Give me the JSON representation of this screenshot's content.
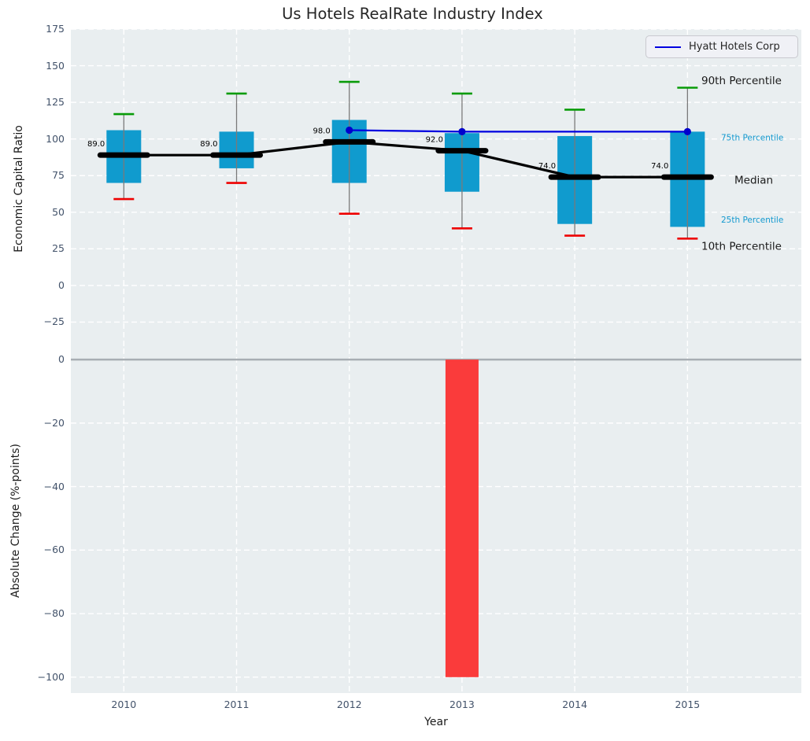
{
  "title": "Us Hotels RealRate Industry Index",
  "legend": {
    "label": "Hyatt Hotels Corp"
  },
  "colors": {
    "axes_background": "#e9eef0",
    "grid": "#ffffff",
    "box_fill": "#109bce",
    "whisker": "#7a7a7a",
    "cap_90th": "#089b08",
    "cap_10th": "#ee0000",
    "median": "#000000",
    "hyatt_line": "#0000e0",
    "hyatt_marker": "#0000cd",
    "bar_negative": "#fa3b3b",
    "zero_line": "#a8aeb3",
    "tick_label": "#42526a",
    "percentile_small_label": "#1399cf",
    "text": "#262626"
  },
  "chart_data": [
    {
      "type": "box",
      "panel": "top",
      "title": "Us Hotels RealRate Industry Index",
      "ylabel": "Economic Capital Ratio",
      "x": [
        2010,
        2011,
        2012,
        2013,
        2014,
        2015
      ],
      "xlim": [
        2009.53,
        2016.01
      ],
      "ylim": [
        -43,
        175
      ],
      "yticks": [
        175,
        150,
        125,
        100,
        75,
        50,
        25,
        0,
        -25
      ],
      "grid": "white dashed, horizontal and vertical",
      "legend_position": "upper right",
      "series": [
        {
          "name": "90th Percentile",
          "values": [
            117,
            131,
            139,
            131,
            120,
            135
          ]
        },
        {
          "name": "75th Percentile",
          "values": [
            106,
            105,
            113,
            104,
            102,
            105
          ]
        },
        {
          "name": "Median",
          "values": [
            89,
            89,
            98,
            92,
            74,
            74
          ]
        },
        {
          "name": "25th Percentile",
          "values": [
            70,
            80,
            70,
            64,
            42,
            40
          ]
        },
        {
          "name": "10th Percentile",
          "values": [
            59,
            70,
            49,
            39,
            34,
            32
          ]
        }
      ],
      "median_labels": [
        "89.0",
        "89.0",
        "98.0",
        "92.0",
        "74.0",
        "74.0"
      ],
      "line_series": {
        "name": "Hyatt Hotels Corp",
        "points": [
          [
            2012,
            106
          ],
          [
            2013,
            105
          ],
          [
            2015,
            105
          ]
        ]
      },
      "annotations": [
        {
          "text": "90th Percentile",
          "value": 140,
          "x": 801,
          "size": 13.5,
          "color": "#1a1a1a"
        },
        {
          "text": "75th Percentile",
          "value": 101,
          "x": 826,
          "size": 10.5,
          "color": "#1399cf"
        },
        {
          "text": "Median",
          "value": 72,
          "x": 843,
          "size": 13.5,
          "color": "#1a1a1a"
        },
        {
          "text": "25th Percentile",
          "value": 45,
          "x": 826,
          "size": 10.5,
          "color": "#1399cf"
        },
        {
          "text": "10th Percentile",
          "value": 27,
          "x": 801,
          "size": 13.5,
          "color": "#1a1a1a"
        }
      ]
    },
    {
      "type": "bar",
      "panel": "bottom",
      "ylabel": "Absolute Change (%-points)",
      "xlabel": "Year",
      "x": [
        2010,
        2011,
        2012,
        2013,
        2014,
        2015
      ],
      "xtick_labels": [
        "2010",
        "2011",
        "2012",
        "2013",
        "2014",
        "2015"
      ],
      "values": [
        null,
        null,
        null,
        -100,
        null,
        null
      ],
      "yticks": [
        0,
        -20,
        -40,
        -60,
        -80,
        -100
      ],
      "ylim": [
        -105,
        3.5
      ],
      "zero_line": true
    }
  ]
}
